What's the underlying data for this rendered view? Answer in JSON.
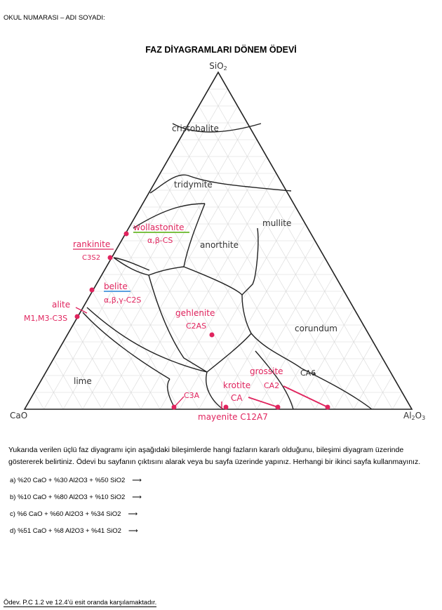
{
  "header": {
    "student_field": "OKUL NUMARASI – ADI SOYADI:",
    "title": "FAZ DİYAGRAMLARI DÖNEM ÖDEVİ"
  },
  "diagram": {
    "vertices": {
      "top": "SiO2",
      "left": "CaO",
      "right": "Al2O3"
    },
    "phases_black": [
      "cristobalite",
      "tridymite",
      "mullite",
      "anorthite",
      "corundum",
      "lime"
    ],
    "phases_red": {
      "wollastonite": "wollastonite",
      "wollastonite_sub": "α,β-CS",
      "rankinite": "rankinite",
      "rankinite_sub": "C3S2",
      "belite": "belite",
      "belite_sub": "α,β,γ-C2S",
      "alite": "alite",
      "alite_sub": "M1,M3-C3S",
      "gehlenite": "gehlenite",
      "gehlenite_sub": "C2AS",
      "grossite": "grossite",
      "ca2": "CA2",
      "ca6": "CA6",
      "krotite": "krotite",
      "ca": "CA",
      "c3a": "C3A",
      "mayenite": "mayenite C12A7"
    },
    "colors": {
      "annotation": "#e0245e",
      "green_underline": "#7bc043",
      "blue_underline": "#5aa0e0"
    }
  },
  "instructions": "Yukarıda verilen üçlü faz diyagramı için aşağıdaki bileşimlerde hangi fazların kararlı olduğunu, bileşimi diyagram üzerinde göstererek belirtiniz. Ödevi bu sayfanın çıktısını alarak veya bu sayfa üzerinde yapınız. Herhangi bir ikinci sayfa kullanmayınız.",
  "questions": [
    {
      "label": "a)",
      "text": "%20 CaO + %30 Al2O3 + %50 SiO2"
    },
    {
      "label": "b)",
      "text": "%10 CaO + %80 Al2O3 + %10 SiO2"
    },
    {
      "label": "c)",
      "text": "%6 CaO + %60 Al2O3 + %34 SiO2"
    },
    {
      "label": "d)",
      "text": "%51 CaO + %8 Al2O3 + %41 SiO2"
    }
  ],
  "footer": "Ödev. P.C 1.2 ve 12.4’ü esit oranda karşılamaktadır."
}
